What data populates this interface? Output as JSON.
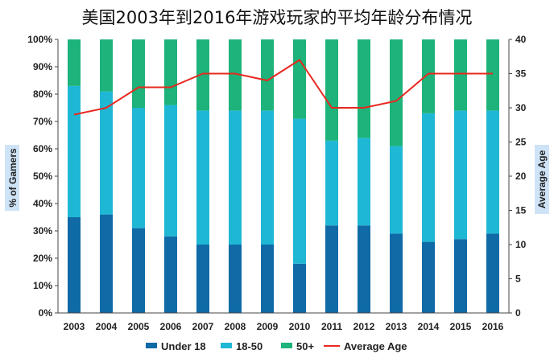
{
  "chart_data": {
    "type": "bar",
    "stacked": true,
    "title": "美国2003年到2016年游戏玩家的平均年龄分布情况",
    "categories": [
      "2003",
      "2004",
      "2005",
      "2006",
      "2007",
      "2008",
      "2009",
      "2010",
      "2011",
      "2012",
      "2013",
      "2014",
      "2015",
      "2016"
    ],
    "series": [
      {
        "name": "Under 18",
        "color": "#0f6aa6",
        "values": [
          35,
          36,
          31,
          28,
          25,
          25,
          25,
          18,
          32,
          32,
          29,
          26,
          27,
          29
        ]
      },
      {
        "name": "18-50",
        "color": "#1fb8d4",
        "values": [
          48,
          45,
          44,
          48,
          49,
          49,
          49,
          53,
          31,
          32,
          32,
          47,
          47,
          45
        ]
      },
      {
        "name": "50+",
        "color": "#1db37a",
        "values": [
          17,
          19,
          25,
          24,
          26,
          26,
          26,
          29,
          37,
          36,
          39,
          27,
          26,
          26
        ]
      }
    ],
    "line_series": {
      "name": "Average Age",
      "color": "#e8281f",
      "axis": "right",
      "values": [
        29,
        30,
        33,
        33,
        35,
        35,
        34,
        37,
        30,
        30,
        31,
        35,
        35,
        35
      ]
    },
    "y_left": {
      "label": "% of Gamers",
      "min": 0,
      "max": 100,
      "step": 10,
      "ticks": [
        "0%",
        "10%",
        "20%",
        "30%",
        "40%",
        "50%",
        "60%",
        "70%",
        "80%",
        "90%",
        "100%"
      ]
    },
    "y_right": {
      "label": "Average Age",
      "min": 0,
      "max": 40,
      "step": 5,
      "ticks": [
        "0",
        "5",
        "10",
        "15",
        "20",
        "25",
        "30",
        "35",
        "40"
      ]
    },
    "legend": [
      "Under 18",
      "18-50",
      "50+",
      "Average Age"
    ],
    "legend_position": "bottom",
    "grid": false
  }
}
